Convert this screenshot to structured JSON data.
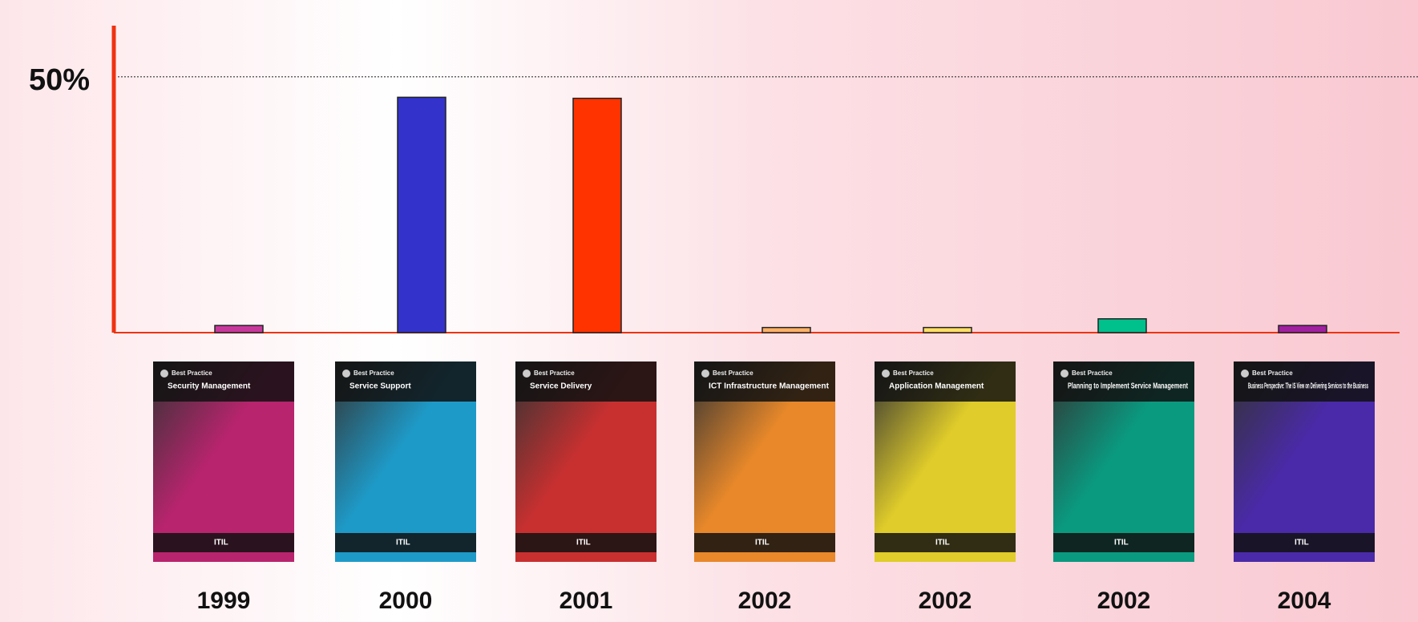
{
  "chart_data": {
    "type": "bar",
    "categories": [
      "1999",
      "2000",
      "2001",
      "2002",
      "2002",
      "2002",
      "2004"
    ],
    "values": [
      1.4,
      46,
      45.8,
      1,
      1,
      2.7,
      1.4
    ],
    "colors": [
      "#c8389c",
      "#3333cc",
      "#ff3300",
      "#ffb266",
      "#ffe066",
      "#00c08c",
      "#a020a0"
    ],
    "ylim": [
      0,
      60
    ],
    "yticks": [
      {
        "value": 50,
        "label": "50%"
      }
    ],
    "grid": true,
    "axis_color": "#ee3311",
    "covers": [
      {
        "title": "Security Management",
        "color": "#b8246e"
      },
      {
        "title": "Service Support",
        "color": "#1e9ac8"
      },
      {
        "title": "Service Delivery",
        "color": "#c83030"
      },
      {
        "title": "ICT Infrastructure Management",
        "color": "#e8882a"
      },
      {
        "title": "Application Management",
        "color": "#e0cc2a"
      },
      {
        "title": "Planning to Implement Service Management",
        "color": "#0a9a80"
      },
      {
        "title": "Business Perspective: The IS View on Delivering Services to the Business",
        "color": "#4a2aa8"
      }
    ],
    "cover_brand": "Best Practice",
    "cover_footer": "ITIL"
  }
}
